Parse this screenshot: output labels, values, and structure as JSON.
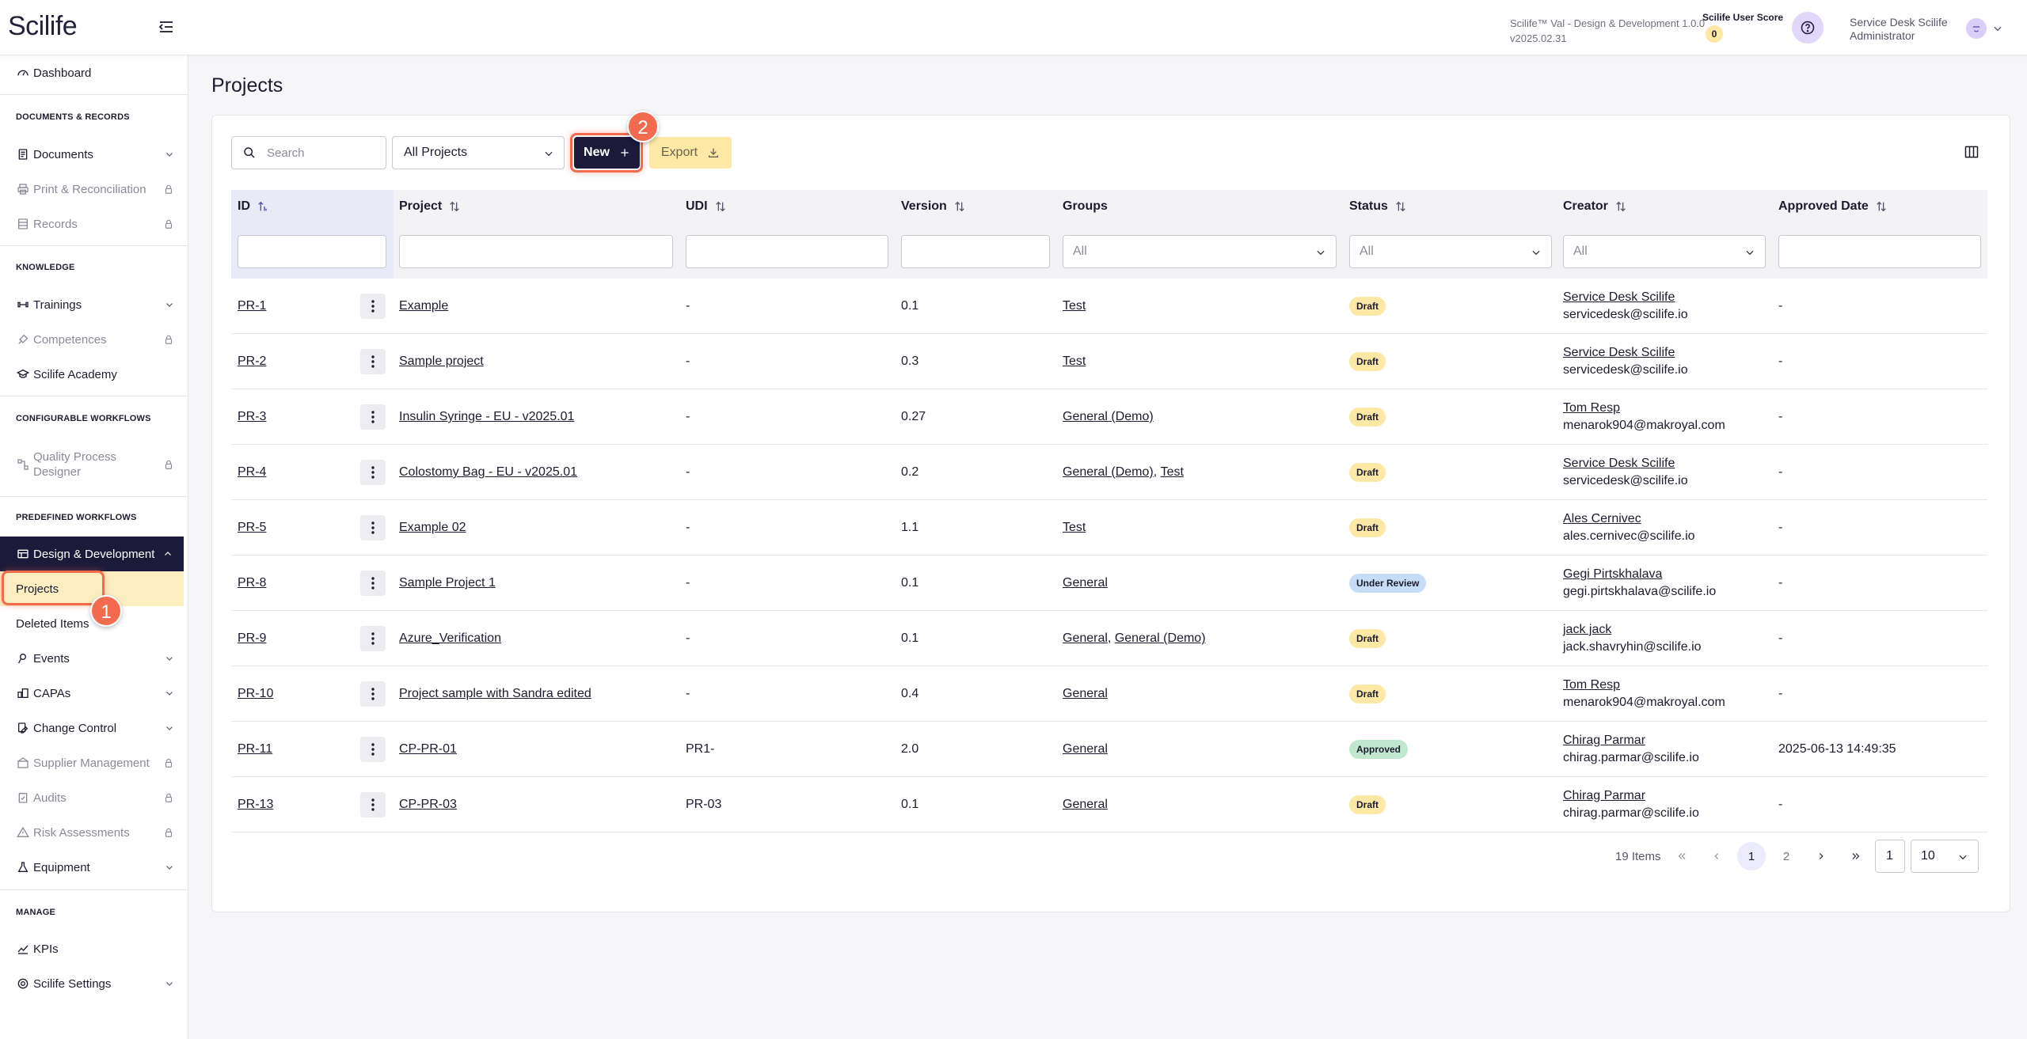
{
  "app": {
    "logo": "Scilife",
    "info_line1": "Scilife™ Val - Design & Development 1.0.0",
    "info_line2": "v2025.02.31",
    "score_label": "Scilife User Score",
    "score_value": "0",
    "user_line1": "Service Desk Scilife",
    "user_line2": "Administrator"
  },
  "sidebar": {
    "dashboard": "Dashboard",
    "sec_docs": "DOCUMENTS & RECORDS",
    "documents": "Documents",
    "print": "Print & Reconciliation",
    "records": "Records",
    "sec_knowledge": "KNOWLEDGE",
    "trainings": "Trainings",
    "competences": "Competences",
    "academy": "Scilife Academy",
    "sec_configurable": "CONFIGURABLE WORKFLOWS",
    "qpd_line1": "Quality Process",
    "qpd_line2": "Designer",
    "sec_predefined": "PREDEFINED WORKFLOWS",
    "design_dev": "Design & Development",
    "projects": "Projects",
    "deleted": "Deleted Items",
    "events": "Events",
    "capas": "CAPAs",
    "change_control": "Change Control",
    "supplier": "Supplier Management",
    "audits": "Audits",
    "risk": "Risk Assessments",
    "equipment": "Equipment",
    "sec_manage": "MANAGE",
    "kpis": "KPIs",
    "settings": "Scilife Settings"
  },
  "annotations": {
    "step1": "1",
    "step2": "2"
  },
  "page": {
    "title": "Projects",
    "search_placeholder": "Search",
    "scope_select": "All Projects",
    "new_label": "New",
    "export_label": "Export"
  },
  "table": {
    "headers": {
      "id": "ID",
      "project": "Project",
      "udi": "UDI",
      "version": "Version",
      "groups": "Groups",
      "status": "Status",
      "creator": "Creator",
      "approved": "Approved Date"
    },
    "filter_all": "All",
    "rows": [
      {
        "id": "PR-1",
        "project": "Example",
        "udi": "-",
        "version": "0.1",
        "groups": [
          "Test"
        ],
        "status": "Draft",
        "status_kind": "draft",
        "creator": "Service Desk Scilife",
        "email": "servicedesk@scilife.io",
        "approved": "-"
      },
      {
        "id": "PR-2",
        "project": "Sample project",
        "udi": "-",
        "version": "0.3",
        "groups": [
          "Test"
        ],
        "status": "Draft",
        "status_kind": "draft",
        "creator": "Service Desk Scilife",
        "email": "servicedesk@scilife.io",
        "approved": "-"
      },
      {
        "id": "PR-3",
        "project": "Insulin Syringe - EU - v2025.01",
        "udi": "-",
        "version": "0.27",
        "groups": [
          "General (Demo)"
        ],
        "status": "Draft",
        "status_kind": "draft",
        "creator": "Tom Resp",
        "email": "menarok904@makroyal.com",
        "approved": "-"
      },
      {
        "id": "PR-4",
        "project": "Colostomy Bag - EU - v2025.01",
        "udi": "-",
        "version": "0.2",
        "groups": [
          "General (Demo)",
          "Test"
        ],
        "status": "Draft",
        "status_kind": "draft",
        "creator": "Service Desk Scilife",
        "email": "servicedesk@scilife.io",
        "approved": "-"
      },
      {
        "id": "PR-5",
        "project": "Example 02",
        "udi": "-",
        "version": "1.1",
        "groups": [
          "Test"
        ],
        "status": "Draft",
        "status_kind": "draft",
        "creator": "Ales Cernivec",
        "email": "ales.cernivec@scilife.io",
        "approved": "-"
      },
      {
        "id": "PR-8",
        "project": "Sample Project 1",
        "udi": "-",
        "version": "0.1",
        "groups": [
          "General"
        ],
        "status": "Under Review",
        "status_kind": "review",
        "creator": "Gegi Pirtskhalava",
        "email": "gegi.pirtskhalava@scilife.io",
        "approved": "-"
      },
      {
        "id": "PR-9",
        "project": "Azure_Verification",
        "udi": "-",
        "version": "0.1",
        "groups": [
          "General",
          "General (Demo)"
        ],
        "status": "Draft",
        "status_kind": "draft",
        "creator": "jack jack",
        "email": "jack.shavryhin@scilife.io",
        "approved": "-"
      },
      {
        "id": "PR-10",
        "project": "Project sample with Sandra edited",
        "udi": "-",
        "version": "0.4",
        "groups": [
          "General"
        ],
        "status": "Draft",
        "status_kind": "draft",
        "creator": "Tom Resp",
        "email": "menarok904@makroyal.com",
        "approved": "-"
      },
      {
        "id": "PR-11",
        "project": "CP-PR-01",
        "udi": "PR1-",
        "version": "2.0",
        "groups": [
          "General"
        ],
        "status": "Approved",
        "status_kind": "approved",
        "creator": "Chirag Parmar",
        "email": "chirag.parmar@scilife.io",
        "approved": "2025-06-13 14:49:35"
      },
      {
        "id": "PR-13",
        "project": "CP-PR-03",
        "udi": "PR-03",
        "version": "0.1",
        "groups": [
          "General"
        ],
        "status": "Draft",
        "status_kind": "draft",
        "creator": "Chirag Parmar",
        "email": "chirag.parmar@scilife.io",
        "approved": "-"
      }
    ]
  },
  "pagination": {
    "total": "19 Items",
    "page1": "1",
    "page2": "2",
    "jump_value": "1",
    "page_size": "10"
  }
}
